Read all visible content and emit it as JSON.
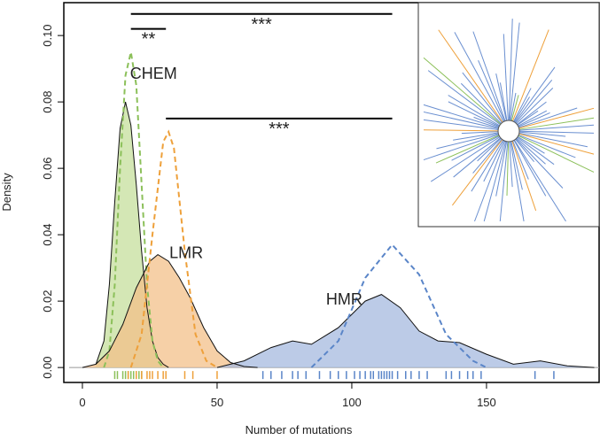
{
  "chart_data": {
    "type": "density",
    "xlabel": "Number of mutations",
    "ylabel": "Density",
    "xlim": [
      -6.9,
      191.8
    ],
    "ylim": [
      -0.0045,
      0.1099
    ],
    "xticks": [
      0,
      50,
      100,
      150
    ],
    "yticks": [
      {
        "value": 0,
        "label": "0.00"
      },
      {
        "value": 0.02,
        "label": "0.02"
      },
      {
        "value": 0.04,
        "label": "0.04"
      },
      {
        "value": 0.06,
        "label": "0.06"
      },
      {
        "value": 0.08,
        "label": "0.08"
      },
      {
        "value": 0.1,
        "label": "0.10"
      }
    ],
    "series": [
      {
        "name": "CHEM",
        "fill": "#c5df9c",
        "color": "#8cc05a",
        "x": [
          5,
          8,
          10,
          12,
          14,
          16,
          18,
          20,
          22,
          24,
          26,
          28,
          30,
          32
        ],
        "values": [
          0.001,
          0.008,
          0.025,
          0.05,
          0.072,
          0.08,
          0.073,
          0.055,
          0.035,
          0.018,
          0.008,
          0.003,
          0.001,
          0
        ],
        "x2": [
          8,
          10,
          12,
          14,
          16,
          18,
          20,
          22,
          24,
          26,
          28,
          30
        ],
        "values2": [
          0,
          0.005,
          0.025,
          0.06,
          0.088,
          0.095,
          0.085,
          0.055,
          0.025,
          0.008,
          0.002,
          0
        ],
        "rug": [
          12,
          13,
          15,
          16,
          17,
          18,
          19,
          20,
          21,
          22
        ]
      },
      {
        "name": "LMR",
        "fill": "#f3c08a",
        "color": "#eea03a",
        "x": [
          0,
          5,
          10,
          15,
          20,
          25,
          28,
          32,
          36,
          40,
          45,
          50,
          55,
          60,
          65
        ],
        "values": [
          0,
          0.001,
          0.005,
          0.013,
          0.024,
          0.032,
          0.034,
          0.032,
          0.027,
          0.021,
          0.012,
          0.005,
          0.0015,
          0.0003,
          0
        ],
        "x2": [
          18,
          22,
          26,
          30,
          32,
          34,
          38,
          42,
          46,
          50
        ],
        "values2": [
          0,
          0.01,
          0.04,
          0.068,
          0.071,
          0.066,
          0.035,
          0.01,
          0.002,
          0
        ],
        "rug": [
          17,
          20,
          22,
          24,
          25,
          26,
          28,
          30,
          31,
          38,
          41,
          50
        ]
      },
      {
        "name": "HMR",
        "fill": "#a6badf",
        "color": "#5a85c8",
        "x": [
          50,
          60,
          70,
          78,
          85,
          95,
          105,
          111,
          118,
          125,
          132,
          140,
          150,
          160,
          170,
          180,
          190
        ],
        "values": [
          0,
          0.002,
          0.006,
          0.008,
          0.007,
          0.012,
          0.02,
          0.022,
          0.018,
          0.011,
          0.008,
          0.0075,
          0.004,
          0.001,
          0.002,
          0.0005,
          0
        ],
        "x2": [
          85,
          95,
          105,
          115,
          125,
          135,
          145,
          150
        ],
        "values2": [
          0,
          0.008,
          0.027,
          0.037,
          0.028,
          0.01,
          0.002,
          0
        ],
        "rug": [
          67,
          70,
          74,
          78,
          80,
          83,
          88,
          92,
          95,
          98,
          101,
          103,
          105,
          107,
          108,
          110,
          111,
          112,
          113,
          114,
          115,
          117,
          120,
          122,
          125,
          128,
          135,
          137,
          140,
          143,
          145,
          148,
          168,
          175
        ]
      }
    ],
    "annotations": [
      {
        "label": "***",
        "x": [
          18,
          115
        ],
        "y": 0.1065
      },
      {
        "label": "**",
        "x": [
          18,
          31
        ],
        "y": 0.102
      },
      {
        "label": "***",
        "x": [
          31,
          115
        ],
        "y": 0.075
      }
    ]
  }
}
